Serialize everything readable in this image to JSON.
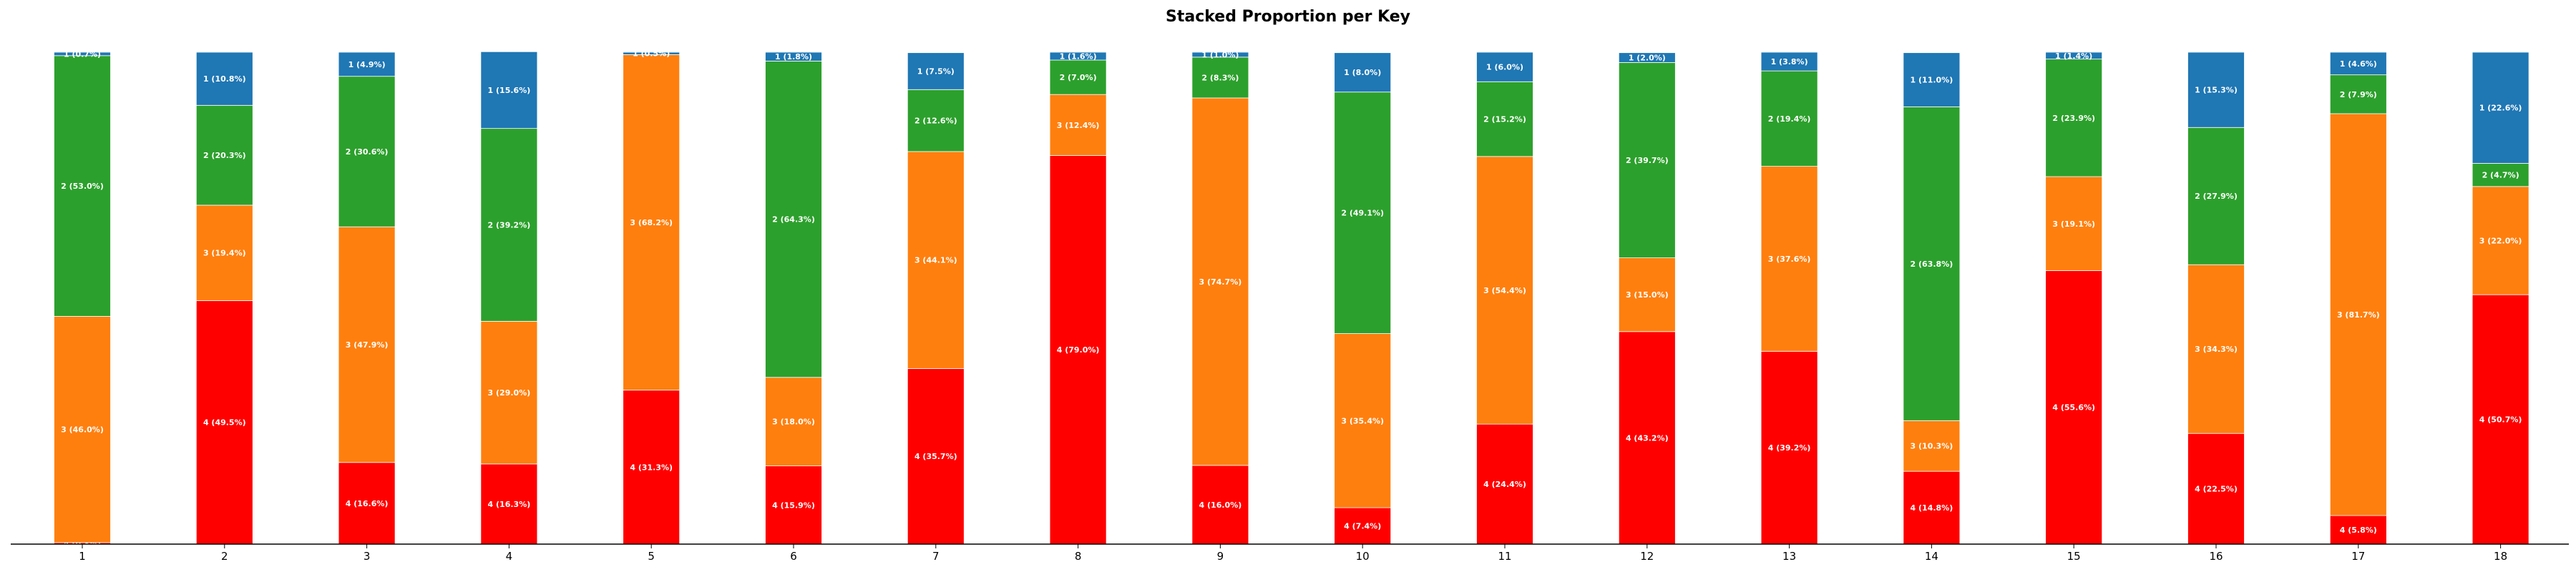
{
  "chart_data": {
    "type": "bar",
    "stacked": true,
    "title": "Stacked Proportion per Key",
    "xlabel": "",
    "ylabel": "",
    "ylim": [
      0,
      100
    ],
    "categories": [
      "1",
      "2",
      "3",
      "4",
      "5",
      "6",
      "7",
      "8",
      "9",
      "10",
      "11",
      "12",
      "13",
      "14",
      "15",
      "16",
      "17",
      "18"
    ],
    "series": [
      {
        "name": "4",
        "color": "#ff0000",
        "values": [
          0.3,
          49.5,
          16.6,
          16.3,
          31.3,
          15.9,
          35.7,
          79.0,
          16.0,
          7.4,
          24.4,
          43.2,
          39.2,
          14.8,
          55.6,
          22.5,
          5.8,
          50.7
        ]
      },
      {
        "name": "3",
        "color": "#ff7f0e",
        "values": [
          46.0,
          19.4,
          47.9,
          29.0,
          68.2,
          18.0,
          44.1,
          12.4,
          74.7,
          35.4,
          54.4,
          15.0,
          37.6,
          10.3,
          19.1,
          34.3,
          81.7,
          22.0
        ]
      },
      {
        "name": "2",
        "color": "#2ca02c",
        "values": [
          53.0,
          20.3,
          30.6,
          39.2,
          0.0,
          64.3,
          12.6,
          7.0,
          8.3,
          49.1,
          15.2,
          39.7,
          19.4,
          63.8,
          23.9,
          27.9,
          7.9,
          4.7
        ]
      },
      {
        "name": "1",
        "color": "#1f77b4",
        "values": [
          0.7,
          10.8,
          4.9,
          15.6,
          0.5,
          1.8,
          7.5,
          1.6,
          1.0,
          8.0,
          6.0,
          2.0,
          3.8,
          11.0,
          1.4,
          15.3,
          4.6,
          22.6
        ]
      }
    ],
    "legend": "none",
    "grid": false
  }
}
